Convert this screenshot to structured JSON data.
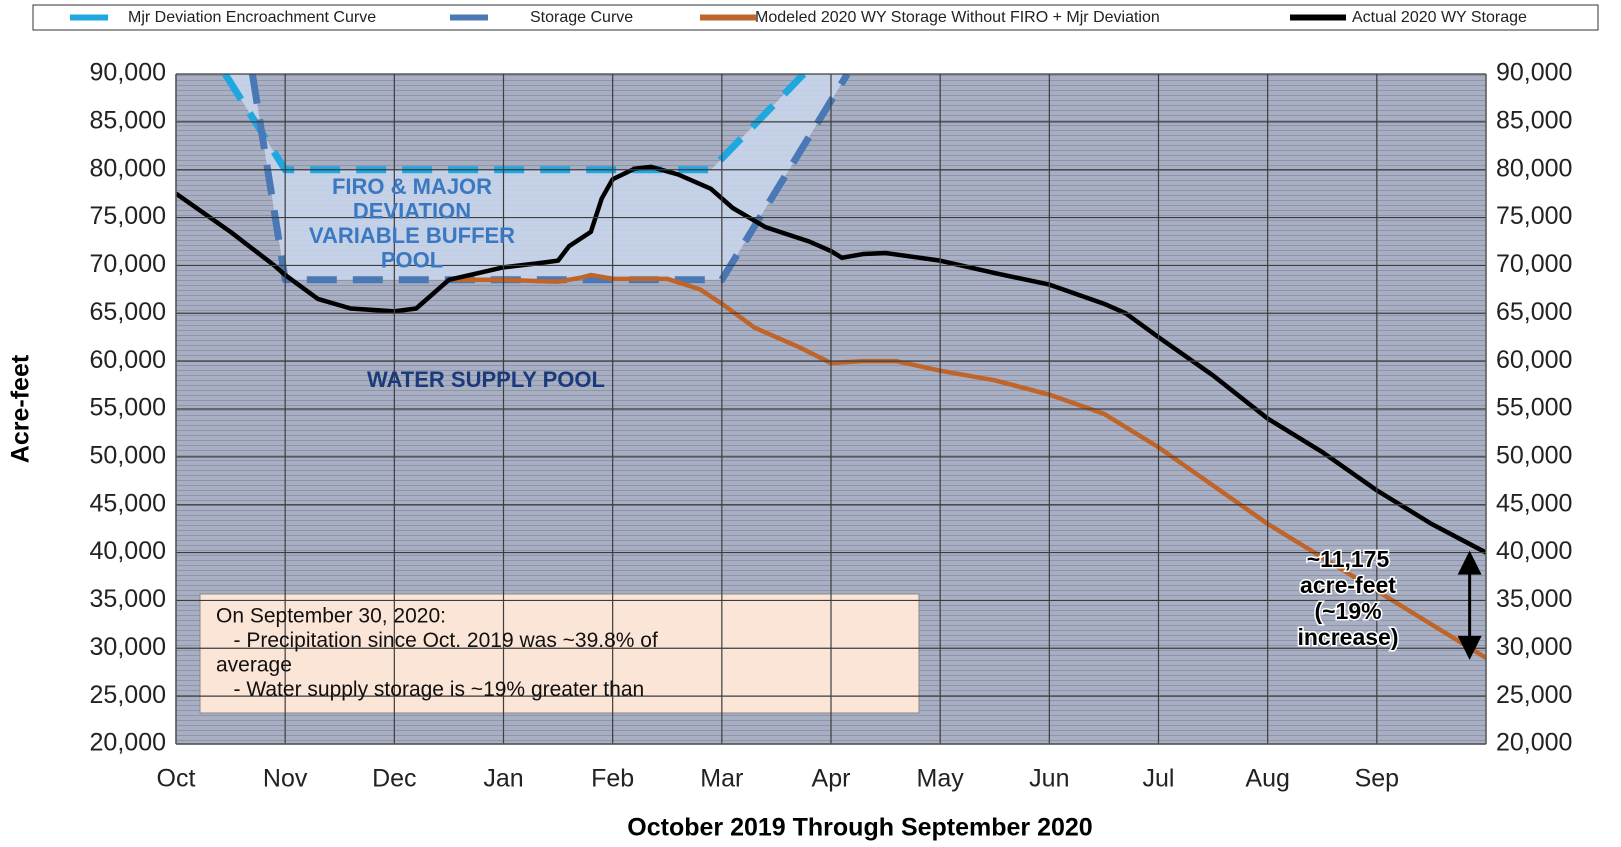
{
  "chart_data": {
    "type": "line",
    "x_label": "October 2019 Through September 2020",
    "y_label": "Acre-feet",
    "xlim": [
      0,
      12
    ],
    "xticks": [
      {
        "value": 0,
        "label": "Oct"
      },
      {
        "value": 1,
        "label": "Nov"
      },
      {
        "value": 2,
        "label": "Dec"
      },
      {
        "value": 3,
        "label": "Jan"
      },
      {
        "value": 4,
        "label": "Feb"
      },
      {
        "value": 5,
        "label": "Mar"
      },
      {
        "value": 6,
        "label": "Apr"
      },
      {
        "value": 7,
        "label": "May"
      },
      {
        "value": 8,
        "label": "Jun"
      },
      {
        "value": 9,
        "label": "Jul"
      },
      {
        "value": 10,
        "label": "Aug"
      },
      {
        "value": 11,
        "label": "Sep"
      }
    ],
    "ylim": [
      20000,
      90000
    ],
    "yticks": [
      {
        "value": 20000,
        "label": "20,000"
      },
      {
        "value": 25000,
        "label": "25,000"
      },
      {
        "value": 30000,
        "label": "30,000"
      },
      {
        "value": 35000,
        "label": "35,000"
      },
      {
        "value": 40000,
        "label": "40,000"
      },
      {
        "value": 45000,
        "label": "45,000"
      },
      {
        "value": 50000,
        "label": "50,000"
      },
      {
        "value": 55000,
        "label": "55,000"
      },
      {
        "value": 60000,
        "label": "60,000"
      },
      {
        "value": 65000,
        "label": "65,000"
      },
      {
        "value": 70000,
        "label": "70,000"
      },
      {
        "value": 75000,
        "label": "75,000"
      },
      {
        "value": 80000,
        "label": "80,000"
      },
      {
        "value": 85000,
        "label": "85,000"
      },
      {
        "value": 90000,
        "label": "90,000"
      }
    ],
    "grid": true,
    "series": [
      {
        "name": "Mjr Deviation Encroachment Curve",
        "color": "#1fa7e0",
        "dashed": true,
        "x": [
          0.45,
          1.0,
          4.9,
          5.75
        ],
        "values": [
          90000,
          80000,
          80000,
          90000
        ]
      },
      {
        "name": "Storage Curve",
        "color": "#4a78b5",
        "dashed": true,
        "x": [
          0.7,
          1.0,
          5.0,
          6.15
        ],
        "values": [
          90000,
          68500,
          68500,
          90000
        ]
      },
      {
        "name": "Modeled 2020 WY Storage Without FIRO + Mjr Deviation",
        "color": "#c0652a",
        "dashed": false,
        "x": [
          2.5,
          3.0,
          3.5,
          3.7,
          3.8,
          4.0,
          4.5,
          4.8,
          5.0,
          5.3,
          5.7,
          6.0,
          6.3,
          6.6,
          7.0,
          7.5,
          8.0,
          8.5,
          9.0,
          9.5,
          10.0,
          10.5,
          11.0,
          11.5,
          12.0
        ],
        "values": [
          68500,
          68500,
          68300,
          68700,
          69000,
          68600,
          68600,
          67500,
          66000,
          63500,
          61500,
          59800,
          60000,
          60000,
          59000,
          58000,
          56500,
          54500,
          51000,
          47000,
          43000,
          39500,
          36000,
          32500,
          29000
        ]
      },
      {
        "name": "Actual 2020 WY Storage",
        "color": "#000000",
        "dashed": false,
        "x": [
          0,
          0.5,
          0.9,
          1.0,
          1.3,
          1.6,
          2.0,
          2.2,
          2.5,
          3.0,
          3.3,
          3.5,
          3.6,
          3.8,
          3.9,
          4.0,
          4.2,
          4.35,
          4.6,
          4.9,
          5.1,
          5.4,
          5.8,
          6.0,
          6.1,
          6.3,
          6.5,
          7.0,
          7.5,
          8.0,
          8.5,
          8.7,
          9.0,
          9.5,
          10.0,
          10.5,
          11.0,
          11.5,
          12.0
        ],
        "values": [
          77500,
          73500,
          70000,
          69000,
          66500,
          65500,
          65200,
          65500,
          68500,
          69800,
          70200,
          70500,
          72000,
          73500,
          77000,
          79000,
          80100,
          80300,
          79500,
          78000,
          76000,
          74000,
          72500,
          71500,
          70800,
          71200,
          71300,
          70500,
          69200,
          68000,
          66000,
          65000,
          62500,
          58500,
          54000,
          50500,
          46500,
          43000,
          40000
        ]
      }
    ],
    "buffer_pool_label": [
      "FIRO & MAJOR",
      "DEVIATION",
      "VARIABLE BUFFER",
      "POOL"
    ],
    "water_supply_label": "WATER SUPPLY POOL",
    "note_box": [
      "On September 30, 2020:",
      "   - Precipitation since Oct. 2019 was ~39.8% of",
      "average",
      "   - Water supply storage is ~19% greater than"
    ],
    "difference_label": [
      "~11,175",
      "acre-feet",
      "(~19%",
      "increase)"
    ]
  }
}
